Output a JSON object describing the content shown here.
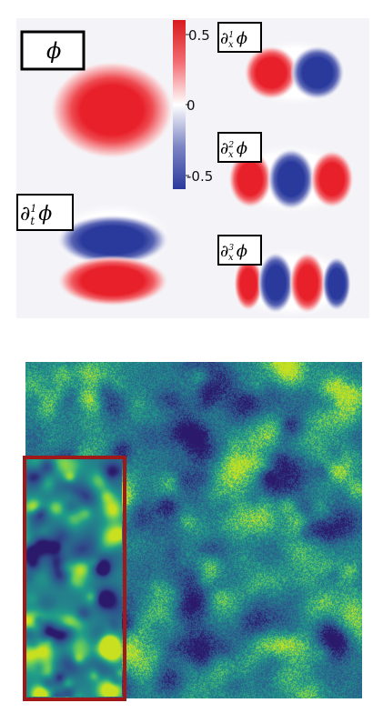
{
  "top_panel": {
    "labels": {
      "phi": "ϕ",
      "dt1": {
        "op": "∂",
        "sub": "t",
        "sup": "1",
        "f": "ϕ"
      },
      "dx1": {
        "op": "∂",
        "sub": "x",
        "sup": "1",
        "f": "ϕ"
      },
      "dx2": {
        "op": "∂",
        "sub": "x",
        "sup": "2",
        "f": "ϕ"
      },
      "dx3": {
        "op": "∂",
        "sub": "x",
        "sup": "3",
        "f": "ϕ"
      }
    },
    "colorbar": {
      "ticks": [
        "0.5",
        "0",
        "-0.5"
      ],
      "range": [
        -0.6,
        0.6
      ],
      "colors": {
        "positive": "#e8202a",
        "zero": "#ffffff",
        "negative": "#2a3a9c"
      }
    },
    "background": "#f4f4f8"
  },
  "bottom_panel": {
    "inset_border_color": "#a01818",
    "palette": [
      "#2b1a6b",
      "#2f4f8c",
      "#25778c",
      "#1f9e89",
      "#6cce59",
      "#c8e020"
    ]
  }
}
